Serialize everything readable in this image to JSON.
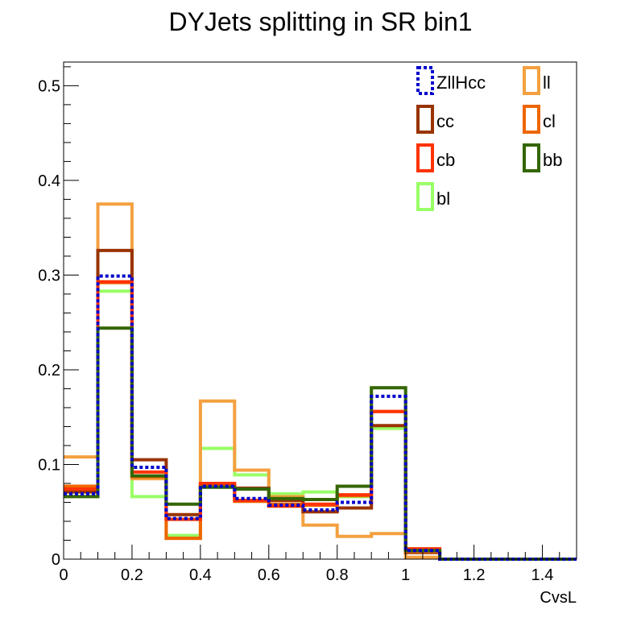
{
  "chart_data": {
    "type": "line",
    "title": "DYJets splitting in SR bin1",
    "xlabel": "CvsL",
    "ylabel": "",
    "xlim": [
      0,
      1.5
    ],
    "ylim": [
      0,
      0.525
    ],
    "x_tick_labels": [
      "0",
      "0.2",
      "0.4",
      "0.6",
      "0.8",
      "1",
      "1.2",
      "1.4"
    ],
    "y_tick_labels": [
      "0",
      "0.1",
      "0.2",
      "0.3",
      "0.4",
      "0.5"
    ],
    "bin_edges": [
      0,
      0.1,
      0.2,
      0.3,
      0.4,
      0.5,
      0.6,
      0.7,
      0.8,
      0.9,
      1.0,
      1.1,
      1.2,
      1.3,
      1.4,
      1.5
    ],
    "legend_position": "top-right",
    "grid": false,
    "series": [
      {
        "name": "bl",
        "color": "#99ff66",
        "dashed": false,
        "values": [
          0.072,
          0.283,
          0.066,
          0.025,
          0.117,
          0.089,
          0.069,
          0.071,
          0.066,
          0.138,
          0.007,
          0,
          0,
          0,
          0
        ]
      },
      {
        "name": "ll",
        "color": "#f4a040",
        "dashed": false,
        "values": [
          0.108,
          0.375,
          0.085,
          0.022,
          0.167,
          0.094,
          0.066,
          0.036,
          0.024,
          0.027,
          0.002,
          0,
          0,
          0,
          0
        ]
      },
      {
        "name": "cc",
        "color": "#993300",
        "dashed": false,
        "values": [
          0.071,
          0.326,
          0.105,
          0.047,
          0.078,
          0.075,
          0.062,
          0.05,
          0.054,
          0.141,
          0.007,
          0,
          0,
          0,
          0
        ]
      },
      {
        "name": "cl",
        "color": "#ee6600",
        "dashed": false,
        "values": [
          0.077,
          0.292,
          0.087,
          0.022,
          0.079,
          0.061,
          0.058,
          0.057,
          0.067,
          0.156,
          0.008,
          0,
          0,
          0,
          0
        ]
      },
      {
        "name": "cb",
        "color": "#ff3300",
        "dashed": false,
        "values": [
          0.074,
          0.293,
          0.092,
          0.042,
          0.08,
          0.062,
          0.056,
          0.058,
          0.068,
          0.156,
          0.011,
          0,
          0,
          0,
          0
        ]
      },
      {
        "name": "bb",
        "color": "#336600",
        "dashed": false,
        "values": [
          0.066,
          0.244,
          0.088,
          0.058,
          0.076,
          0.074,
          0.064,
          0.063,
          0.077,
          0.181,
          0.009,
          0,
          0,
          0,
          0
        ]
      },
      {
        "name": "ZllHcc",
        "color": "#0000cc",
        "dashed": true,
        "values": [
          0.069,
          0.299,
          0.097,
          0.043,
          0.077,
          0.064,
          0.057,
          0.052,
          0.06,
          0.172,
          0.009,
          0,
          0,
          0,
          0
        ]
      }
    ],
    "legend_order": [
      "ZllHcc",
      "ll",
      "cc",
      "cl",
      "cb",
      "bb",
      "bl"
    ]
  }
}
